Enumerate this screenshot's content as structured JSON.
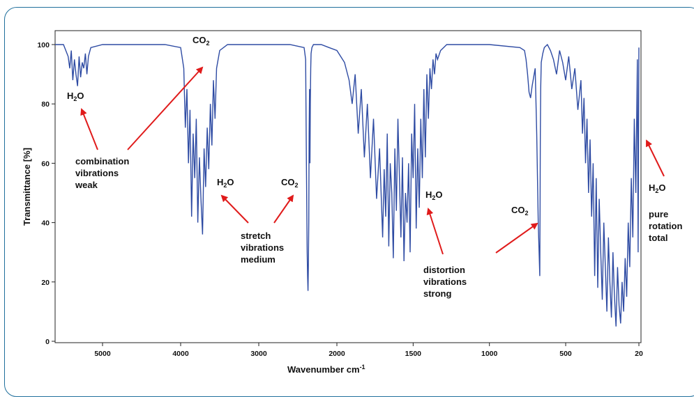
{
  "chart_data": {
    "type": "line",
    "title": "",
    "xlabel": "Wavenumber cm",
    "xlabel_superscript": "-1",
    "ylabel": "Transmittance [%]",
    "xlim": [
      5800,
      20
    ],
    "ylim": [
      0,
      105
    ],
    "x_reversed": true,
    "x_ticks": [
      5000,
      4000,
      3000,
      2000,
      1500,
      1000,
      500,
      20
    ],
    "y_ticks": [
      0,
      20,
      40,
      60,
      80,
      100
    ],
    "grid": false,
    "line_color": "#2e4ba3",
    "annotation_color": "#e01b1b",
    "series": [
      {
        "values_note": "",
        "x": [
          5800,
          5500,
          5440,
          5420,
          5400,
          5380,
          5360,
          5340,
          5320,
          5300,
          5280,
          5260,
          5240,
          5220,
          5200,
          5180,
          5150,
          5000,
          4200,
          4000,
          3960,
          3940,
          3920,
          3900,
          3880,
          3860,
          3840,
          3820,
          3800,
          3780,
          3760,
          3740,
          3720,
          3700,
          3680,
          3660,
          3640,
          3620,
          3600,
          3580,
          3560,
          3540,
          3500,
          3400,
          2600,
          2420,
          2400,
          2390,
          2380,
          2375,
          2370,
          2365,
          2360,
          2355,
          2350,
          2345,
          2340,
          2335,
          2330,
          2320,
          2300,
          2280,
          2250,
          2200,
          2100,
          2000,
          1950,
          1920,
          1900,
          1880,
          1860,
          1840,
          1820,
          1800,
          1780,
          1760,
          1740,
          1720,
          1700,
          1690,
          1680,
          1670,
          1660,
          1650,
          1640,
          1630,
          1620,
          1610,
          1600,
          1590,
          1580,
          1570,
          1560,
          1550,
          1540,
          1530,
          1520,
          1510,
          1500,
          1490,
          1480,
          1470,
          1460,
          1450,
          1440,
          1430,
          1420,
          1410,
          1400,
          1390,
          1380,
          1370,
          1360,
          1350,
          1340,
          1320,
          1300,
          1280,
          1250,
          1200,
          1000,
          800,
          770,
          760,
          750,
          740,
          730,
          720,
          700,
          690,
          680,
          670,
          668,
          666,
          664,
          660,
          650,
          640,
          620,
          600,
          580,
          560,
          540,
          520,
          500,
          480,
          460,
          440,
          420,
          400,
          390,
          380,
          370,
          360,
          350,
          340,
          330,
          320,
          310,
          300,
          290,
          280,
          270,
          260,
          250,
          240,
          230,
          220,
          210,
          200,
          190,
          180,
          170,
          160,
          150,
          140,
          130,
          120,
          110,
          100,
          90,
          80,
          70,
          60,
          50,
          40,
          30,
          25,
          20
        ],
        "y": [
          100,
          100,
          96,
          92,
          98,
          88,
          95,
          90,
          86,
          96,
          89,
          94,
          92,
          97,
          90,
          96,
          99,
          100,
          100,
          99,
          92,
          72,
          85,
          60,
          78,
          42,
          70,
          55,
          75,
          40,
          62,
          48,
          36,
          65,
          52,
          72,
          58,
          80,
          66,
          88,
          75,
          92,
          98,
          100,
          100,
          99,
          95,
          60,
          30,
          22,
          17,
          25,
          40,
          70,
          85,
          60,
          80,
          92,
          97,
          99,
          100,
          100,
          100,
          100,
          99,
          98,
          94,
          88,
          80,
          90,
          70,
          85,
          62,
          80,
          55,
          75,
          48,
          65,
          35,
          58,
          42,
          70,
          32,
          60,
          50,
          28,
          65,
          44,
          75,
          55,
          35,
          62,
          27,
          50,
          40,
          60,
          30,
          70,
          55,
          80,
          38,
          65,
          45,
          75,
          55,
          85,
          62,
          90,
          75,
          92,
          85,
          95,
          90,
          97,
          95,
          98,
          99,
          100,
          100,
          100,
          100,
          99,
          98,
          95,
          90,
          84,
          82,
          86,
          92,
          70,
          40,
          22,
          45,
          70,
          85,
          94,
          97,
          99,
          100,
          98,
          95,
          90,
          98,
          94,
          88,
          96,
          85,
          92,
          78,
          88,
          70,
          82,
          60,
          75,
          50,
          68,
          42,
          60,
          22,
          55,
          18,
          48,
          30,
          14,
          40,
          25,
          10,
          35,
          20,
          8,
          30,
          15,
          5,
          25,
          12,
          6,
          20,
          10,
          28,
          15,
          40,
          25,
          55,
          35,
          75,
          50,
          95,
          30,
          99
        ]
      }
    ],
    "annotations": [
      {
        "id": "h2o-1",
        "main": "H",
        "sub": "2",
        "tail": "O",
        "lines": []
      },
      {
        "id": "co2-1",
        "main": "CO",
        "sub": "2",
        "tail": "",
        "lines": []
      },
      {
        "id": "combo",
        "main": "",
        "sub": "",
        "tail": "",
        "lines": [
          "combination",
          "vibrations",
          "weak"
        ]
      },
      {
        "id": "h2o-2",
        "main": "H",
        "sub": "2",
        "tail": "O",
        "lines": []
      },
      {
        "id": "co2-2",
        "main": "CO",
        "sub": "2",
        "tail": "",
        "lines": []
      },
      {
        "id": "stretch",
        "main": "",
        "sub": "",
        "tail": "",
        "lines": [
          "stretch",
          "vibrations",
          "medium"
        ]
      },
      {
        "id": "h2o-3",
        "main": "H",
        "sub": "2",
        "tail": "O",
        "lines": []
      },
      {
        "id": "co2-3",
        "main": "CO",
        "sub": "2",
        "tail": "",
        "lines": []
      },
      {
        "id": "distortion",
        "main": "",
        "sub": "",
        "tail": "",
        "lines": [
          "distortion",
          "vibrations",
          "strong"
        ]
      },
      {
        "id": "h2o-4",
        "main": "H",
        "sub": "2",
        "tail": "O",
        "lines": []
      },
      {
        "id": "pure",
        "main": "",
        "sub": "",
        "tail": "",
        "lines": [
          "pure",
          "rotation",
          "total"
        ]
      }
    ]
  }
}
